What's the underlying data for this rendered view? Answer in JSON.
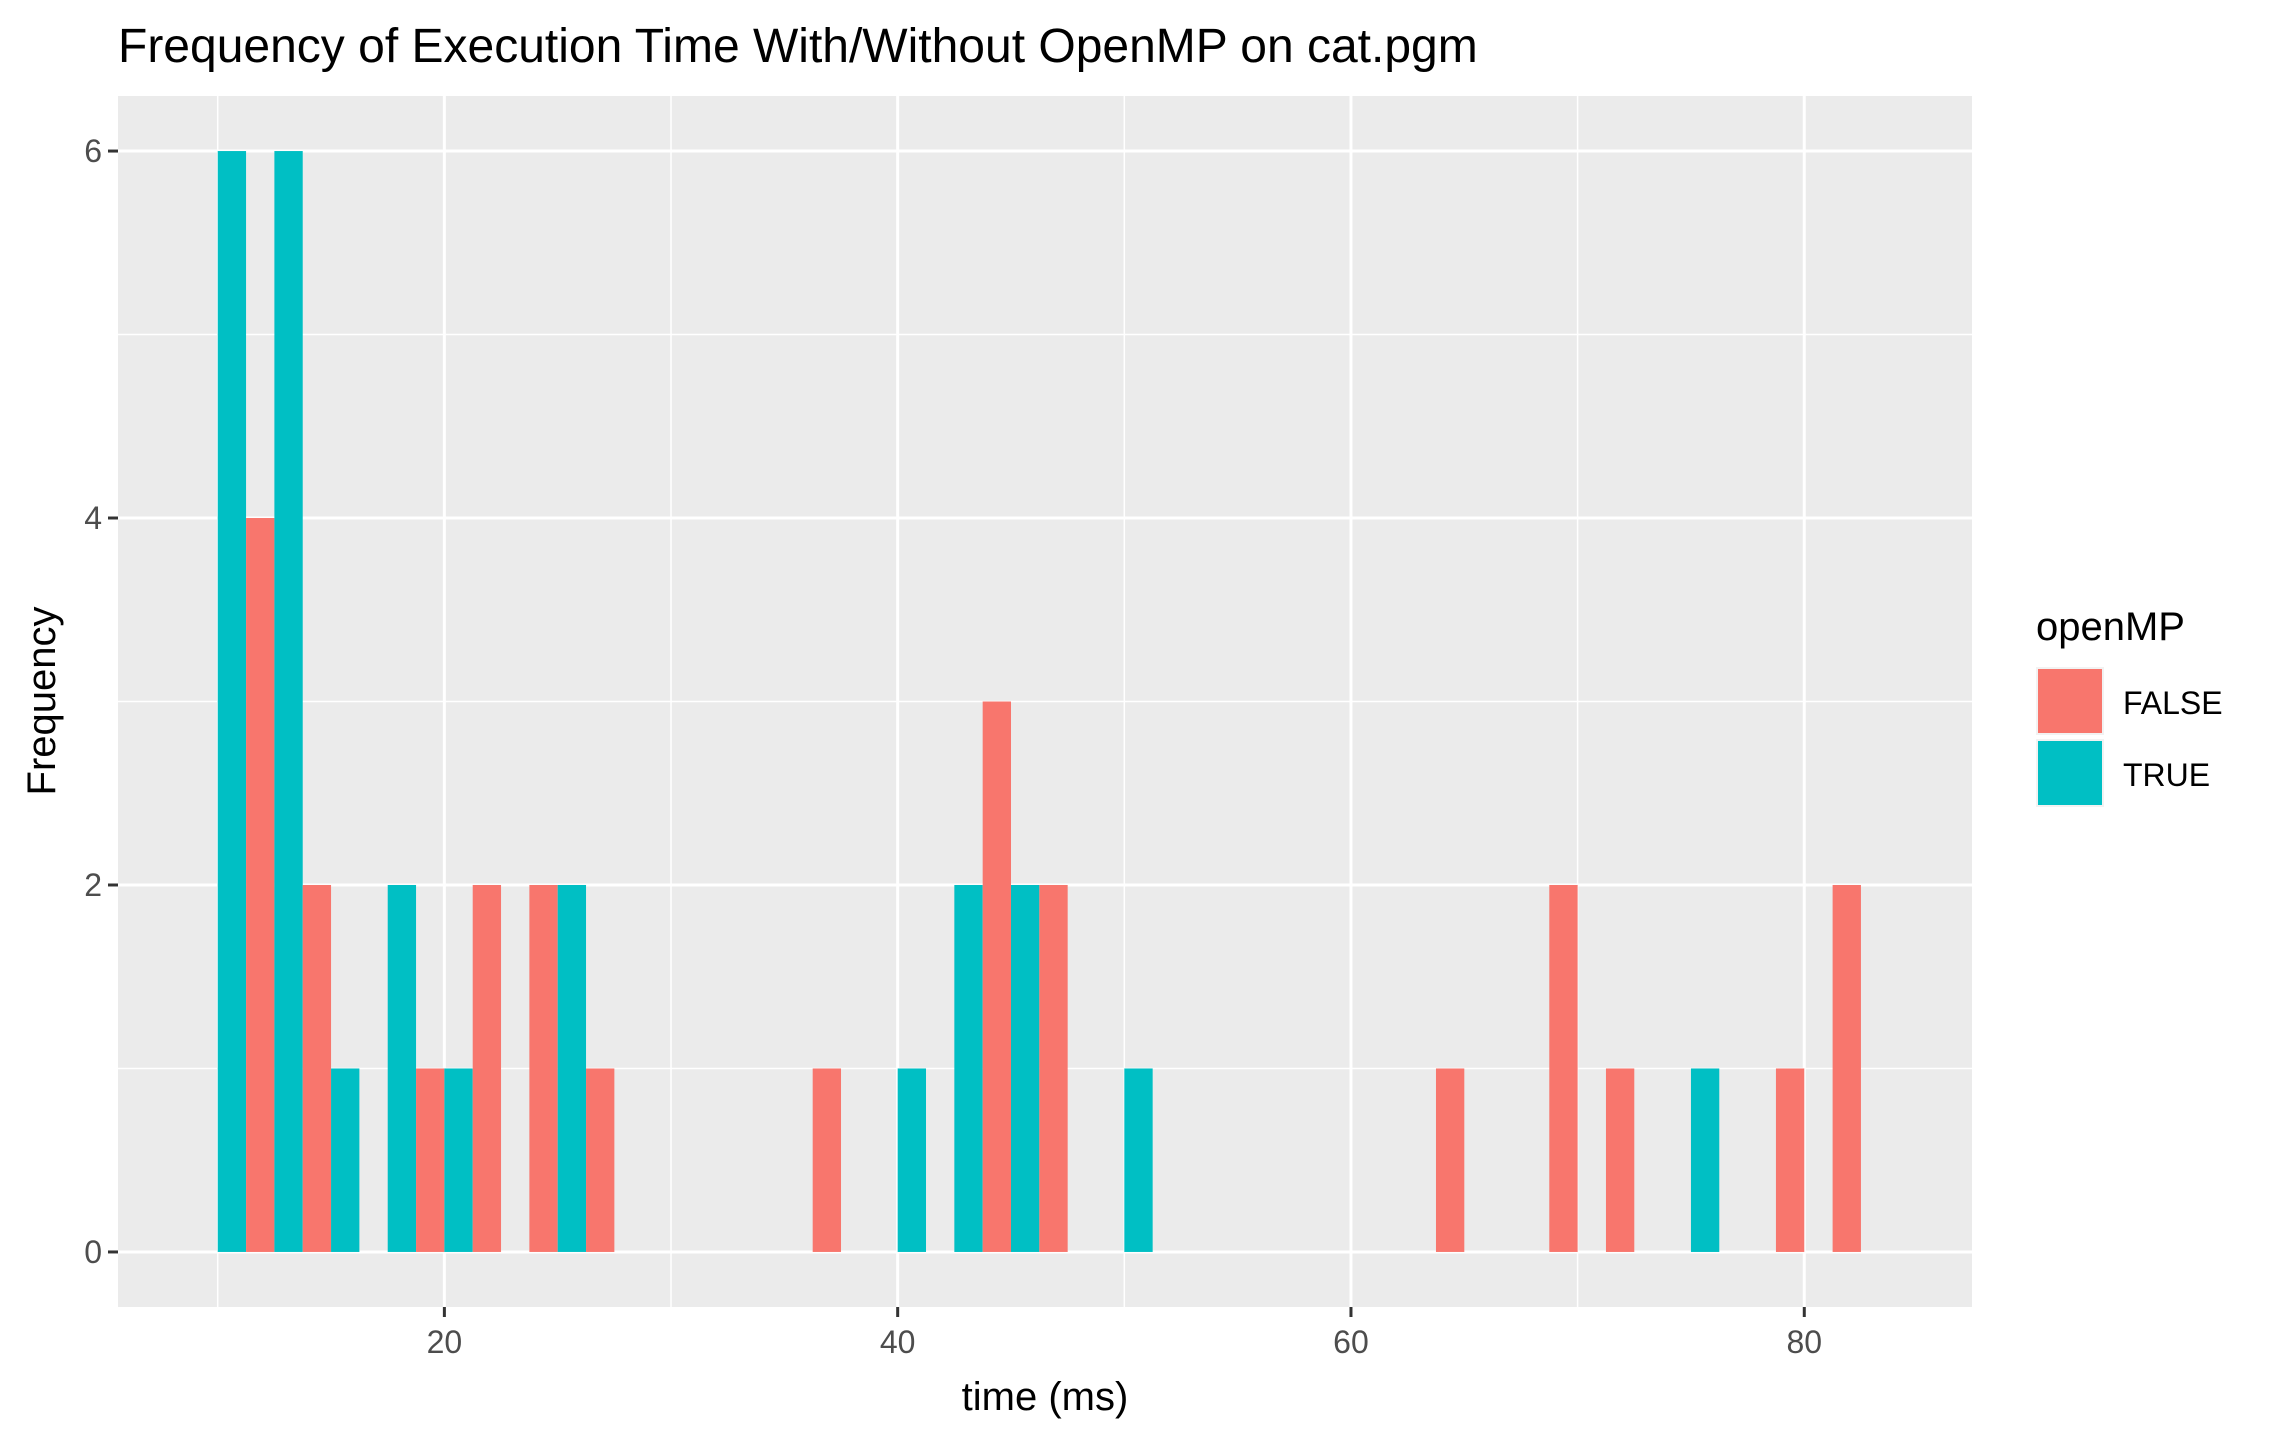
{
  "chart_data": {
    "type": "bar",
    "subtype": "histogram-dodged",
    "title": "Frequency of Execution Time With/Without OpenMP on cat.pgm",
    "xlabel": "time (ms)",
    "ylabel": "Frequency",
    "xlim": [
      5.6,
      87.4
    ],
    "ylim": [
      -0.3,
      6.3
    ],
    "x_ticks": [
      20,
      40,
      60,
      80
    ],
    "x_tick_labels": [
      "20",
      "40",
      "60",
      "80"
    ],
    "y_ticks": [
      0,
      2,
      4,
      6
    ],
    "y_tick_labels": [
      "0",
      "2",
      "4",
      "6"
    ],
    "grid": true,
    "legend": {
      "title": "openMP",
      "position": "right",
      "entries": [
        {
          "label": "FALSE",
          "color": "#F8766D"
        },
        {
          "label": "TRUE",
          "color": "#00BFC4"
        }
      ]
    },
    "bin_width": 2.5,
    "bins": [
      {
        "x": 11.25,
        "FALSE": 4,
        "TRUE": 6
      },
      {
        "x": 13.75,
        "FALSE": 2,
        "TRUE": 6
      },
      {
        "x": 16.25,
        "FALSE": 0,
        "TRUE": 1
      },
      {
        "x": 18.75,
        "FALSE": 1,
        "TRUE": 2
      },
      {
        "x": 21.25,
        "FALSE": 2,
        "TRUE": 1
      },
      {
        "x": 23.75,
        "FALSE": 2,
        "TRUE": 0
      },
      {
        "x": 26.25,
        "FALSE": 1,
        "TRUE": 2
      },
      {
        "x": 36.25,
        "FALSE": 1,
        "TRUE": 0
      },
      {
        "x": 41.25,
        "FALSE": 0,
        "TRUE": 1
      },
      {
        "x": 43.75,
        "FALSE": 3,
        "TRUE": 2
      },
      {
        "x": 46.25,
        "FALSE": 2,
        "TRUE": 2
      },
      {
        "x": 51.25,
        "FALSE": 0,
        "TRUE": 1
      },
      {
        "x": 63.75,
        "FALSE": 1,
        "TRUE": 0
      },
      {
        "x": 68.75,
        "FALSE": 2,
        "TRUE": 0
      },
      {
        "x": 71.25,
        "FALSE": 1,
        "TRUE": 0
      },
      {
        "x": 76.25,
        "FALSE": 0,
        "TRUE": 1
      },
      {
        "x": 78.75,
        "FALSE": 1,
        "TRUE": 0
      },
      {
        "x": 81.25,
        "FALSE": 2,
        "TRUE": 0
      }
    ],
    "colors": {
      "panel_background": "#EBEBEB",
      "grid": "#FFFFFF",
      "FALSE": "#F8766D",
      "TRUE": "#00BFC4"
    }
  }
}
